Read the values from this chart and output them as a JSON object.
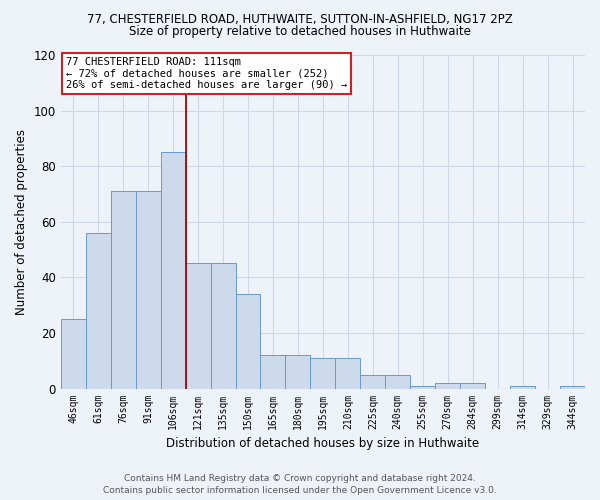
{
  "title1": "77, CHESTERFIELD ROAD, HUTHWAITE, SUTTON-IN-ASHFIELD, NG17 2PZ",
  "title2": "Size of property relative to detached houses in Huthwaite",
  "xlabel": "Distribution of detached houses by size in Huthwaite",
  "ylabel": "Number of detached properties",
  "categories": [
    "46sqm",
    "61sqm",
    "76sqm",
    "91sqm",
    "106sqm",
    "121sqm",
    "135sqm",
    "150sqm",
    "165sqm",
    "180sqm",
    "195sqm",
    "210sqm",
    "225sqm",
    "240sqm",
    "255sqm",
    "270sqm",
    "284sqm",
    "299sqm",
    "314sqm",
    "329sqm",
    "344sqm"
  ],
  "values": [
    25,
    56,
    71,
    71,
    85,
    45,
    45,
    34,
    12,
    12,
    11,
    11,
    5,
    5,
    1,
    2,
    2,
    0,
    1,
    0,
    1
  ],
  "bar_color": "#ccdaeb",
  "bar_edge_color": "#6699cc",
  "background_color": "#eef2f9",
  "grid_color": "#d0d8e8",
  "vline_color": "#aa0000",
  "annotation_text_line1": "77 CHESTERFIELD ROAD: 111sqm",
  "annotation_text_line2": "← 72% of detached houses are smaller (252)",
  "annotation_text_line3": "26% of semi-detached houses are larger (90) →",
  "annotation_box_facecolor": "#ffffff",
  "annotation_box_edgecolor": "#cc2222",
  "ylim": [
    0,
    120
  ],
  "yticks": [
    0,
    20,
    40,
    60,
    80,
    100,
    120
  ],
  "footnote": "Contains HM Land Registry data © Crown copyright and database right 2024.\nContains public sector information licensed under the Open Government Licence v3.0."
}
